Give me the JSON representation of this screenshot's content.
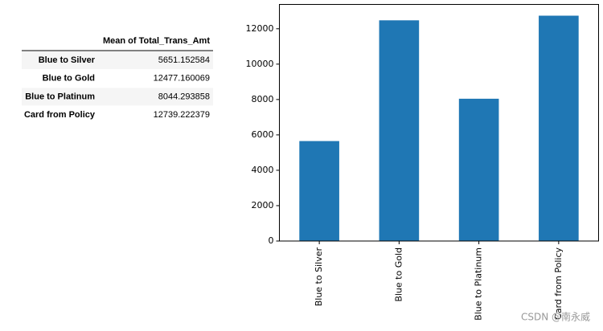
{
  "table": {
    "header": "Mean of Total_Trans_Amt",
    "rows": [
      [
        "Blue to Silver",
        5651.152584
      ],
      [
        "Blue to Gold",
        12477.160069
      ],
      [
        "Blue to Platinum",
        8044.293858
      ],
      [
        "Card from Policy",
        12739.222379
      ]
    ]
  },
  "chart_data": {
    "type": "bar",
    "categories": [
      "Blue to Silver",
      "Blue to Gold",
      "Blue to Platinum",
      "Card from Policy"
    ],
    "values": [
      5651.152584,
      12477.160069,
      8044.293858,
      12739.222379
    ],
    "color": "#1f77b4",
    "ylim": [
      0,
      13376
    ],
    "yticks": [
      0,
      2000,
      4000,
      6000,
      8000,
      10000,
      12000
    ],
    "grid": false
  },
  "watermark": "CSDN @南永威"
}
